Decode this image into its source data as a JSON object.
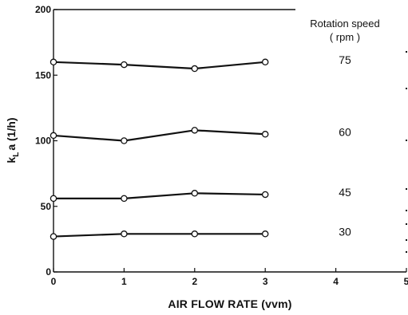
{
  "chart_data": {
    "type": "line",
    "xlabel": "AIR FLOW RATE (vvm)",
    "ylabel_main": "k",
    "ylabel_sub": "L",
    "ylabel_rest": "a  (1/h)",
    "xlim": [
      0,
      5
    ],
    "ylim": [
      0,
      200
    ],
    "xticks": [
      0,
      1,
      2,
      3,
      4,
      5
    ],
    "yticks": [
      0,
      50,
      100,
      150,
      200
    ],
    "grid": false,
    "legend_title_line1": "Rotation speed",
    "legend_title_line2": "( rpm )",
    "series": [
      {
        "name": "75",
        "x": [
          0,
          1,
          2,
          3
        ],
        "values": [
          160,
          158,
          155,
          160
        ]
      },
      {
        "name": "60",
        "x": [
          0,
          1,
          2,
          3
        ],
        "values": [
          104,
          100,
          108,
          105
        ]
      },
      {
        "name": "45",
        "x": [
          0,
          1,
          2,
          3
        ],
        "values": [
          56,
          56,
          60,
          59
        ]
      },
      {
        "name": "30",
        "x": [
          0,
          1,
          2,
          3
        ],
        "values": [
          27,
          29,
          29,
          29
        ]
      }
    ]
  }
}
